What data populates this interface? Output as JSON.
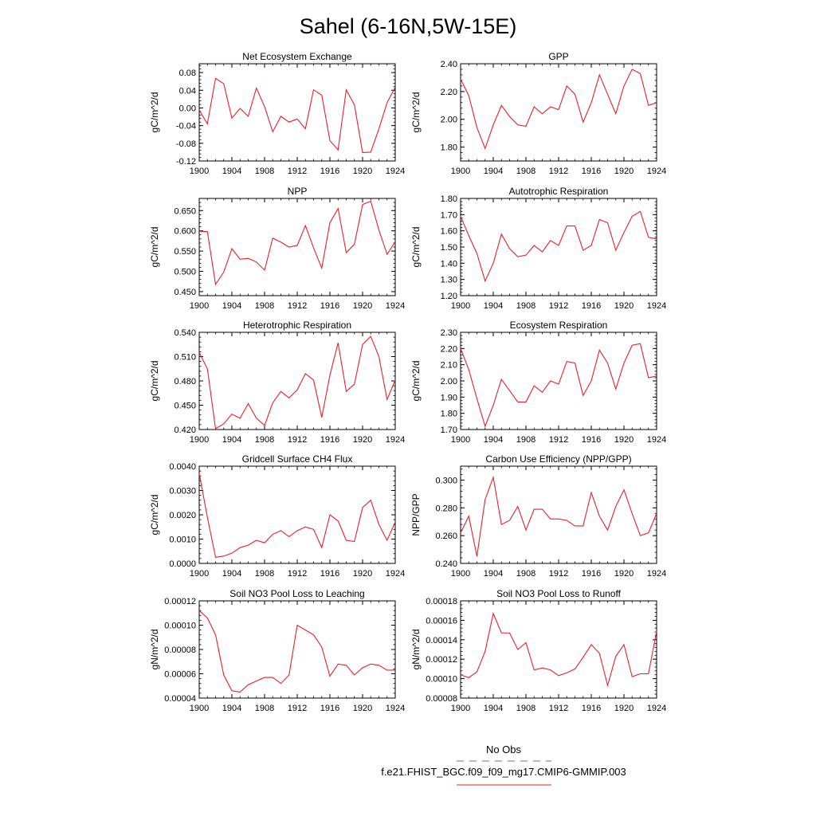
{
  "figure": {
    "title": "Sahel (6-16N,5W-15E)",
    "legend": [
      {
        "label": "No Obs",
        "color": "#6a6ad8",
        "dash": true
      },
      {
        "label": "f.e21.FHIST_BGC.f09_f09_mg17.CMIP6-GMMIP.003",
        "color": "#e8202a",
        "dash": false
      }
    ],
    "line_color": "#e8202a"
  },
  "chart_data": [
    {
      "type": "line",
      "title": "Net Ecosystem Exchange",
      "ylabel": "gC/m^2/d",
      "xlim": [
        1900,
        1924
      ],
      "ylim": [
        -0.12,
        0.1
      ],
      "yticks": [
        -0.12,
        -0.08,
        -0.04,
        0.0,
        0.04,
        0.08
      ],
      "ytick_labels": [
        "-0.12",
        "-0.08",
        "-0.04",
        "0.00",
        "0.04",
        "0.08"
      ],
      "xticks": [
        1900,
        1904,
        1908,
        1912,
        1916,
        1920,
        1924
      ],
      "x": [
        1900,
        1901,
        1902,
        1903,
        1904,
        1905,
        1906,
        1907,
        1908,
        1909,
        1910,
        1911,
        1912,
        1913,
        1914,
        1915,
        1916,
        1917,
        1918,
        1919,
        1920,
        1921,
        1922,
        1923,
        1924
      ],
      "y": [
        -0.005,
        -0.036,
        0.067,
        0.055,
        -0.023,
        -0.001,
        -0.019,
        0.045,
        0.003,
        -0.054,
        -0.019,
        -0.032,
        -0.025,
        -0.047,
        0.041,
        0.029,
        -0.074,
        -0.095,
        0.041,
        0.007,
        -0.101,
        -0.1,
        -0.047,
        0.012,
        0.047
      ]
    },
    {
      "type": "line",
      "title": "GPP",
      "ylabel": "gC/m^2/d",
      "xlim": [
        1900,
        1924
      ],
      "ylim": [
        1.7,
        2.4
      ],
      "yticks": [
        1.8,
        2.0,
        2.2,
        2.4
      ],
      "ytick_labels": [
        "1.80",
        "2.00",
        "2.20",
        "2.40"
      ],
      "xticks": [
        1900,
        1904,
        1908,
        1912,
        1916,
        1920,
        1924
      ],
      "x": [
        1900,
        1901,
        1902,
        1903,
        1904,
        1905,
        1906,
        1907,
        1908,
        1909,
        1910,
        1911,
        1912,
        1913,
        1914,
        1915,
        1916,
        1917,
        1918,
        1919,
        1920,
        1921,
        1922,
        1923,
        1924
      ],
      "y": [
        2.29,
        2.17,
        1.94,
        1.79,
        1.96,
        2.1,
        2.02,
        1.96,
        1.95,
        2.09,
        2.04,
        2.09,
        2.07,
        2.24,
        2.18,
        1.98,
        2.12,
        2.32,
        2.18,
        2.04,
        2.24,
        2.36,
        2.33,
        2.1,
        2.12
      ]
    },
    {
      "type": "line",
      "title": "NPP",
      "ylabel": "gC/m^2/d",
      "xlim": [
        1900,
        1924
      ],
      "ylim": [
        0.44,
        0.68
      ],
      "yticks": [
        0.45,
        0.5,
        0.55,
        0.6,
        0.65
      ],
      "ytick_labels": [
        "0.450",
        "0.500",
        "0.550",
        "0.600",
        "0.650"
      ],
      "xticks": [
        1900,
        1904,
        1908,
        1912,
        1916,
        1920,
        1924
      ],
      "x": [
        1900,
        1901,
        1902,
        1903,
        1904,
        1905,
        1906,
        1907,
        1908,
        1909,
        1910,
        1911,
        1912,
        1913,
        1914,
        1915,
        1916,
        1917,
        1918,
        1919,
        1920,
        1921,
        1922,
        1923,
        1924
      ],
      "y": [
        0.599,
        0.598,
        0.468,
        0.498,
        0.556,
        0.53,
        0.532,
        0.523,
        0.503,
        0.582,
        0.572,
        0.56,
        0.564,
        0.613,
        0.558,
        0.508,
        0.62,
        0.655,
        0.546,
        0.567,
        0.665,
        0.673,
        0.602,
        0.542,
        0.573
      ]
    },
    {
      "type": "line",
      "title": "Autotrophic Respiration",
      "ylabel": "gC/m^2/d",
      "xlim": [
        1900,
        1924
      ],
      "ylim": [
        1.2,
        1.8
      ],
      "yticks": [
        1.2,
        1.3,
        1.4,
        1.5,
        1.6,
        1.7,
        1.8
      ],
      "ytick_labels": [
        "1.20",
        "1.30",
        "1.40",
        "1.50",
        "1.60",
        "1.70",
        "1.80"
      ],
      "xticks": [
        1900,
        1904,
        1908,
        1912,
        1916,
        1920,
        1924
      ],
      "x": [
        1900,
        1901,
        1902,
        1903,
        1904,
        1905,
        1906,
        1907,
        1908,
        1909,
        1910,
        1911,
        1912,
        1913,
        1914,
        1915,
        1916,
        1917,
        1918,
        1919,
        1920,
        1921,
        1922,
        1923,
        1924
      ],
      "y": [
        1.69,
        1.57,
        1.46,
        1.29,
        1.4,
        1.58,
        1.49,
        1.44,
        1.45,
        1.51,
        1.47,
        1.54,
        1.51,
        1.63,
        1.63,
        1.48,
        1.51,
        1.67,
        1.65,
        1.48,
        1.59,
        1.69,
        1.72,
        1.56,
        1.55
      ]
    },
    {
      "type": "line",
      "title": "Heterotrophic Respiration",
      "ylabel": "gC/m^2/d",
      "xlim": [
        1900,
        1924
      ],
      "ylim": [
        0.42,
        0.54
      ],
      "yticks": [
        0.42,
        0.45,
        0.48,
        0.51,
        0.54
      ],
      "ytick_labels": [
        "0.420",
        "0.450",
        "0.480",
        "0.510",
        "0.540"
      ],
      "xticks": [
        1900,
        1904,
        1908,
        1912,
        1916,
        1920,
        1924
      ],
      "x": [
        1900,
        1901,
        1902,
        1903,
        1904,
        1905,
        1906,
        1907,
        1908,
        1909,
        1910,
        1911,
        1912,
        1913,
        1914,
        1915,
        1916,
        1917,
        1918,
        1919,
        1920,
        1921,
        1922,
        1923,
        1924
      ],
      "y": [
        0.515,
        0.495,
        0.421,
        0.427,
        0.439,
        0.434,
        0.452,
        0.434,
        0.425,
        0.453,
        0.467,
        0.459,
        0.469,
        0.489,
        0.481,
        0.435,
        0.487,
        0.527,
        0.467,
        0.476,
        0.525,
        0.535,
        0.51,
        0.457,
        0.481
      ]
    },
    {
      "type": "line",
      "title": "Ecosystem Respiration",
      "ylabel": "gC/m^2/d",
      "xlim": [
        1900,
        1924
      ],
      "ylim": [
        1.7,
        2.3
      ],
      "yticks": [
        1.7,
        1.8,
        1.9,
        2.0,
        2.1,
        2.2,
        2.3
      ],
      "ytick_labels": [
        "1.70",
        "1.80",
        "1.90",
        "2.00",
        "2.10",
        "2.20",
        "2.30"
      ],
      "xticks": [
        1900,
        1904,
        1908,
        1912,
        1916,
        1920,
        1924
      ],
      "x": [
        1900,
        1901,
        1902,
        1903,
        1904,
        1905,
        1906,
        1907,
        1908,
        1909,
        1910,
        1911,
        1912,
        1913,
        1914,
        1915,
        1916,
        1917,
        1918,
        1919,
        1920,
        1921,
        1922,
        1923,
        1924
      ],
      "y": [
        2.2,
        2.07,
        1.89,
        1.72,
        1.85,
        2.01,
        1.94,
        1.87,
        1.87,
        1.97,
        1.93,
        2.0,
        1.98,
        2.12,
        2.11,
        1.91,
        2.0,
        2.19,
        2.11,
        1.95,
        2.11,
        2.22,
        2.23,
        2.02,
        2.03
      ]
    },
    {
      "type": "line",
      "title": "Gridcell Surface CH4 Flux",
      "ylabel": "gC/m^2/d",
      "xlim": [
        1900,
        1924
      ],
      "ylim": [
        0.0,
        0.004
      ],
      "yticks": [
        0.0,
        0.001,
        0.002,
        0.003,
        0.004
      ],
      "ytick_labels": [
        "0.0000",
        "0.0010",
        "0.0020",
        "0.0030",
        "0.0040"
      ],
      "xticks": [
        1900,
        1904,
        1908,
        1912,
        1916,
        1920,
        1924
      ],
      "x": [
        1900,
        1901,
        1902,
        1903,
        1904,
        1905,
        1906,
        1907,
        1908,
        1909,
        1910,
        1911,
        1912,
        1913,
        1914,
        1915,
        1916,
        1917,
        1918,
        1919,
        1920,
        1921,
        1922,
        1923,
        1924
      ],
      "y": [
        0.0037,
        0.0019,
        0.00025,
        0.0003,
        0.00042,
        0.00065,
        0.00075,
        0.00095,
        0.00085,
        0.0012,
        0.00135,
        0.0011,
        0.00135,
        0.0015,
        0.0014,
        0.00065,
        0.002,
        0.00175,
        0.00095,
        0.0009,
        0.0023,
        0.0026,
        0.0016,
        0.00095,
        0.0017
      ]
    },
    {
      "type": "line",
      "title": "Carbon Use Efficiency (NPP/GPP)",
      "ylabel": "NPP/GPP",
      "xlim": [
        1900,
        1924
      ],
      "ylim": [
        0.24,
        0.31
      ],
      "yticks": [
        0.24,
        0.26,
        0.28,
        0.3
      ],
      "ytick_labels": [
        "0.240",
        "0.260",
        "0.280",
        "0.300"
      ],
      "xticks": [
        1900,
        1904,
        1908,
        1912,
        1916,
        1920,
        1924
      ],
      "x": [
        1900,
        1901,
        1902,
        1903,
        1904,
        1905,
        1906,
        1907,
        1908,
        1909,
        1910,
        1911,
        1912,
        1913,
        1914,
        1915,
        1916,
        1917,
        1918,
        1919,
        1920,
        1921,
        1922,
        1923,
        1924
      ],
      "y": [
        0.262,
        0.274,
        0.245,
        0.286,
        0.302,
        0.268,
        0.271,
        0.281,
        0.264,
        0.279,
        0.279,
        0.272,
        0.272,
        0.271,
        0.267,
        0.267,
        0.291,
        0.274,
        0.264,
        0.281,
        0.293,
        0.276,
        0.26,
        0.262,
        0.276
      ]
    },
    {
      "type": "line",
      "title": "Soil NO3 Pool Loss to Leaching",
      "ylabel": "gN/m^2/d",
      "xlim": [
        1900,
        1924
      ],
      "ylim": [
        4e-05,
        0.00012
      ],
      "yticks": [
        4e-05,
        6e-05,
        8e-05,
        0.0001,
        0.00012
      ],
      "ytick_labels": [
        "0.00004",
        "0.00006",
        "0.00008",
        "0.00010",
        "0.00012"
      ],
      "xticks": [
        1900,
        1904,
        1908,
        1912,
        1916,
        1920,
        1924
      ],
      "x": [
        1900,
        1901,
        1902,
        1903,
        1904,
        1905,
        1906,
        1907,
        1908,
        1909,
        1910,
        1911,
        1912,
        1913,
        1914,
        1915,
        1916,
        1917,
        1918,
        1919,
        1920,
        1921,
        1922,
        1923,
        1924
      ],
      "y": [
        0.000112,
        0.000106,
        9.2e-05,
        5.9e-05,
        4.6e-05,
        4.5e-05,
        5.1e-05,
        5.4e-05,
        5.7e-05,
        5.7e-05,
        5.2e-05,
        5.9e-05,
        0.0001,
        9.6e-05,
        9.2e-05,
        8.2e-05,
        5.8e-05,
        6.8e-05,
        6.7e-05,
        5.9e-05,
        6.5e-05,
        6.8e-05,
        6.7e-05,
        6.3e-05,
        6.3e-05
      ]
    },
    {
      "type": "line",
      "title": "Soil NO3 Pool Loss to Runoff",
      "ylabel": "gN/m^2/d",
      "xlim": [
        1900,
        1924
      ],
      "ylim": [
        8e-05,
        0.00018
      ],
      "yticks": [
        8e-05,
        0.0001,
        0.00012,
        0.00014,
        0.00016,
        0.00018
      ],
      "ytick_labels": [
        "0.00008",
        "0.00010",
        "0.00012",
        "0.00014",
        "0.00016",
        "0.00018"
      ],
      "xticks": [
        1900,
        1904,
        1908,
        1912,
        1916,
        1920,
        1924
      ],
      "x": [
        1900,
        1901,
        1902,
        1903,
        1904,
        1905,
        1906,
        1907,
        1908,
        1909,
        1910,
        1911,
        1912,
        1913,
        1914,
        1915,
        1916,
        1917,
        1918,
        1919,
        1920,
        1921,
        1922,
        1923,
        1924
      ],
      "y": [
        0.000104,
        0.000101,
        0.000107,
        0.000128,
        0.000167,
        0.000147,
        0.000147,
        0.00013,
        0.000137,
        0.000109,
        0.000111,
        0.000109,
        0.000103,
        0.000106,
        0.00011,
        0.000122,
        0.000135,
        0.000126,
        9.3e-05,
        0.000123,
        0.000135,
        0.000102,
        0.000105,
        0.000105,
        0.000149
      ]
    }
  ]
}
